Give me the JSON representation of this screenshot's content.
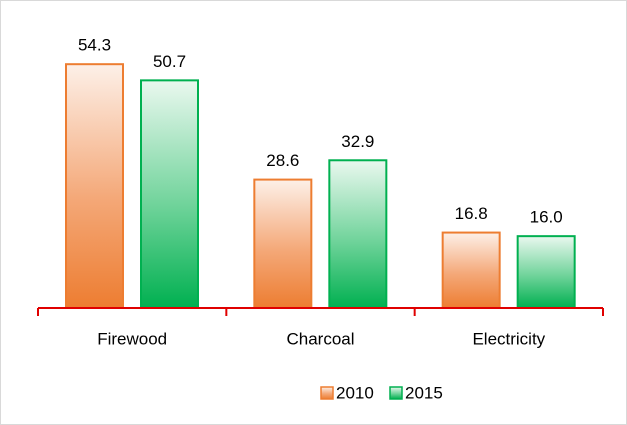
{
  "chart_data": {
    "type": "bar",
    "categories": [
      "Firewood",
      "Charcoal",
      "Electricity"
    ],
    "series": [
      {
        "name": "2010",
        "color": "#ed7d31",
        "values": [
          54.3,
          28.6,
          16.8
        ],
        "value_labels": [
          "54.3",
          "28.6",
          "16.8"
        ]
      },
      {
        "name": "2015",
        "color": "#00b050",
        "values": [
          50.7,
          32.9,
          16.0
        ],
        "value_labels": [
          "50.7",
          "32.9",
          "16.0"
        ]
      }
    ],
    "axis_color": "#e00000"
  }
}
